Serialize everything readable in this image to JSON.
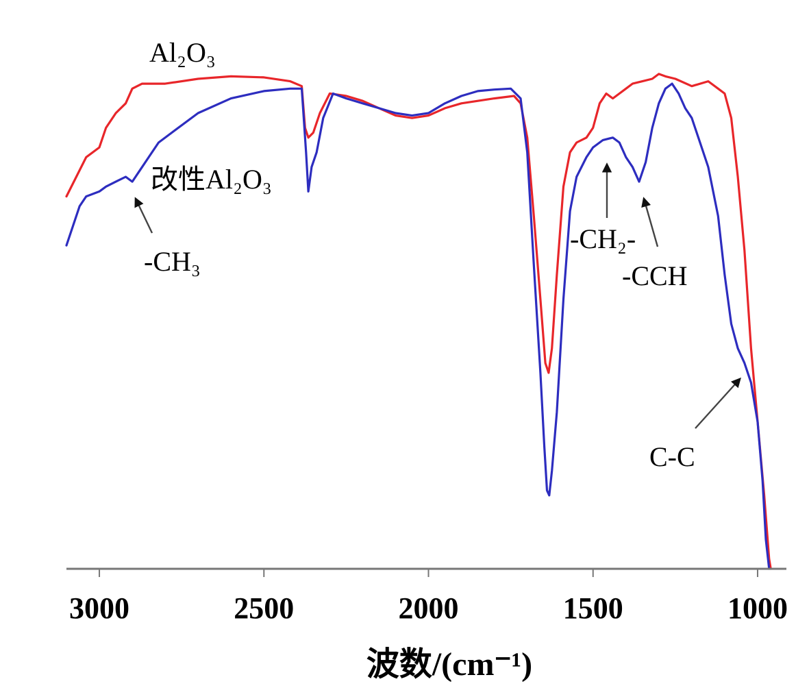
{
  "chart_data": {
    "type": "line",
    "title": "",
    "xlabel": "波数/(cm⁻¹)",
    "ylabel": "",
    "xlim": [
      3100,
      950
    ],
    "ylim": [
      0,
      100
    ],
    "x_reversed": true,
    "grid": false,
    "xticks": [
      3000,
      2500,
      2000,
      1500,
      1000
    ],
    "xtick_labels": [
      "3000",
      "2500",
      "2000",
      "1500",
      "1000"
    ],
    "series": [
      {
        "name": "Al₂O₃",
        "color": "#e8262a",
        "points": [
          [
            3100,
            76
          ],
          [
            3070,
            80
          ],
          [
            3040,
            84
          ],
          [
            3000,
            86
          ],
          [
            2980,
            90
          ],
          [
            2950,
            93
          ],
          [
            2920,
            95
          ],
          [
            2900,
            98
          ],
          [
            2870,
            99
          ],
          [
            2830,
            99
          ],
          [
            2800,
            99
          ],
          [
            2700,
            100
          ],
          [
            2600,
            100.5
          ],
          [
            2500,
            100.3
          ],
          [
            2420,
            99.5
          ],
          [
            2385,
            98.5
          ],
          [
            2375,
            90
          ],
          [
            2365,
            88
          ],
          [
            2350,
            89
          ],
          [
            2330,
            93
          ],
          [
            2300,
            97
          ],
          [
            2250,
            96.5
          ],
          [
            2200,
            95.5
          ],
          [
            2150,
            94
          ],
          [
            2100,
            92.5
          ],
          [
            2050,
            92
          ],
          [
            2000,
            92.5
          ],
          [
            1950,
            94
          ],
          [
            1900,
            95
          ],
          [
            1850,
            95.5
          ],
          [
            1800,
            96
          ],
          [
            1740,
            96.5
          ],
          [
            1720,
            95
          ],
          [
            1700,
            88
          ],
          [
            1680,
            72
          ],
          [
            1660,
            55
          ],
          [
            1645,
            42
          ],
          [
            1635,
            40
          ],
          [
            1625,
            45
          ],
          [
            1610,
            60
          ],
          [
            1590,
            78
          ],
          [
            1570,
            85
          ],
          [
            1550,
            87
          ],
          [
            1520,
            88
          ],
          [
            1500,
            90
          ],
          [
            1480,
            95
          ],
          [
            1460,
            97
          ],
          [
            1440,
            96
          ],
          [
            1420,
            97
          ],
          [
            1400,
            98
          ],
          [
            1380,
            99
          ],
          [
            1350,
            99.5
          ],
          [
            1320,
            100
          ],
          [
            1300,
            101
          ],
          [
            1280,
            100.5
          ],
          [
            1250,
            100
          ],
          [
            1200,
            98.5
          ],
          [
            1150,
            99.5
          ],
          [
            1120,
            98
          ],
          [
            1100,
            97
          ],
          [
            1080,
            92
          ],
          [
            1060,
            80
          ],
          [
            1040,
            65
          ],
          [
            1020,
            45
          ],
          [
            1000,
            30
          ],
          [
            980,
            15
          ],
          [
            965,
            2
          ],
          [
            960,
            0
          ]
        ]
      },
      {
        "name": "改性Al₂O₃",
        "color": "#2d2dbf",
        "points": [
          [
            3100,
            66
          ],
          [
            3080,
            70
          ],
          [
            3060,
            74
          ],
          [
            3040,
            76
          ],
          [
            3000,
            77
          ],
          [
            2980,
            78
          ],
          [
            2950,
            79
          ],
          [
            2920,
            80
          ],
          [
            2900,
            79
          ],
          [
            2880,
            81
          ],
          [
            2850,
            84
          ],
          [
            2820,
            87
          ],
          [
            2780,
            89
          ],
          [
            2700,
            93
          ],
          [
            2600,
            96
          ],
          [
            2500,
            97.5
          ],
          [
            2420,
            98
          ],
          [
            2385,
            98
          ],
          [
            2372,
            85
          ],
          [
            2365,
            77
          ],
          [
            2355,
            82
          ],
          [
            2340,
            85
          ],
          [
            2320,
            92
          ],
          [
            2290,
            97
          ],
          [
            2250,
            96
          ],
          [
            2200,
            95
          ],
          [
            2150,
            94
          ],
          [
            2100,
            93
          ],
          [
            2050,
            92.5
          ],
          [
            2000,
            93
          ],
          [
            1950,
            95
          ],
          [
            1900,
            96.5
          ],
          [
            1850,
            97.5
          ],
          [
            1800,
            97.8
          ],
          [
            1750,
            98
          ],
          [
            1720,
            96
          ],
          [
            1700,
            85
          ],
          [
            1680,
            62
          ],
          [
            1660,
            40
          ],
          [
            1648,
            25
          ],
          [
            1640,
            16
          ],
          [
            1633,
            15
          ],
          [
            1625,
            20
          ],
          [
            1610,
            32
          ],
          [
            1590,
            55
          ],
          [
            1570,
            73
          ],
          [
            1550,
            80
          ],
          [
            1520,
            84
          ],
          [
            1500,
            86
          ],
          [
            1470,
            87.5
          ],
          [
            1440,
            88
          ],
          [
            1420,
            87
          ],
          [
            1400,
            84
          ],
          [
            1380,
            82
          ],
          [
            1360,
            79
          ],
          [
            1340,
            83
          ],
          [
            1320,
            90
          ],
          [
            1300,
            95
          ],
          [
            1280,
            98
          ],
          [
            1260,
            99
          ],
          [
            1240,
            97
          ],
          [
            1220,
            94
          ],
          [
            1200,
            92
          ],
          [
            1180,
            88
          ],
          [
            1150,
            82
          ],
          [
            1120,
            72
          ],
          [
            1100,
            60
          ],
          [
            1080,
            50
          ],
          [
            1060,
            45
          ],
          [
            1040,
            42
          ],
          [
            1020,
            38
          ],
          [
            1000,
            30
          ],
          [
            985,
            18
          ],
          [
            975,
            6
          ],
          [
            965,
            0
          ]
        ]
      }
    ],
    "annotations": [
      {
        "id": "label-al2o3",
        "text": "Al₂O₃"
      },
      {
        "id": "label-modified",
        "text": "改性Al₂O₃"
      },
      {
        "id": "anno-ch3",
        "text": "-CH₃"
      },
      {
        "id": "anno-ch2",
        "text": "-CH₂-"
      },
      {
        "id": "anno-cch",
        "text": "-CCH"
      },
      {
        "id": "anno-cc",
        "text": "C-C"
      }
    ]
  }
}
